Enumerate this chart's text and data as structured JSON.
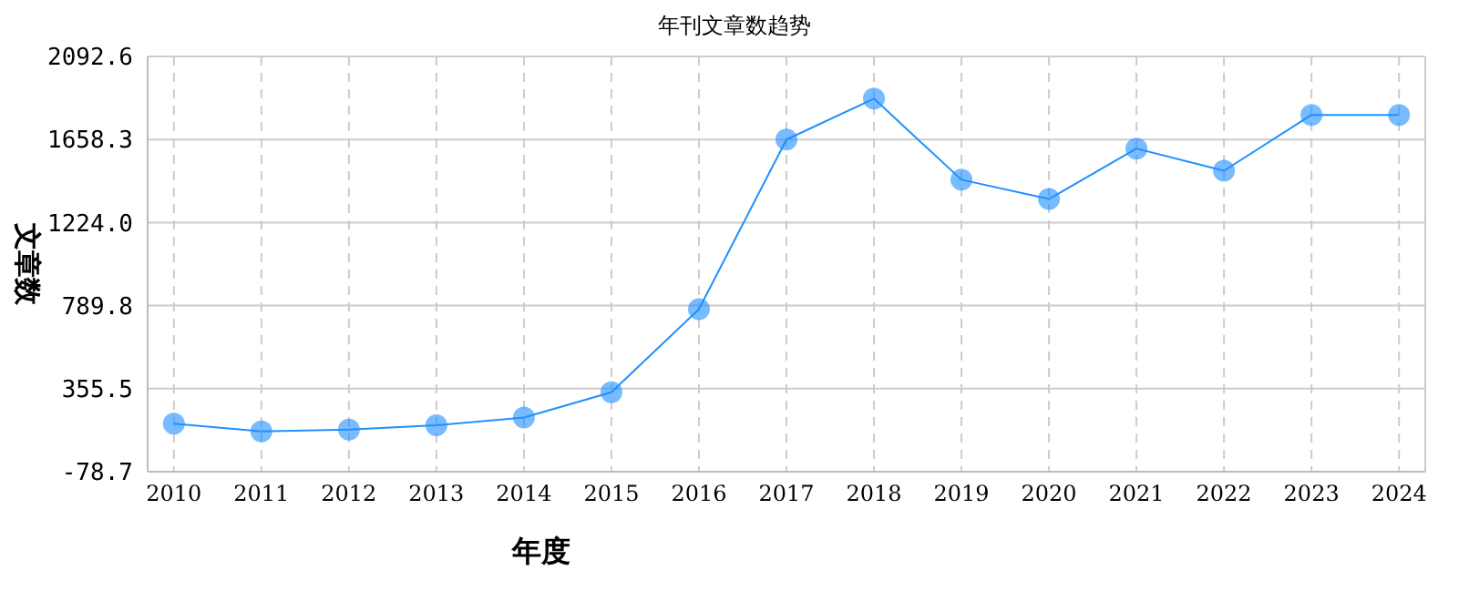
{
  "chart_data": {
    "type": "line",
    "title": "年刊文章数趋势",
    "xlabel": "年度",
    "ylabel": "文章数",
    "categories": [
      "2010",
      "2011",
      "2012",
      "2013",
      "2014",
      "2015",
      "2016",
      "2017",
      "2018",
      "2019",
      "2020",
      "2021",
      "2022",
      "2023",
      "2024"
    ],
    "series": [
      {
        "color": "#1e90ff",
        "values": [
          173,
          132,
          142,
          164,
          205,
          337,
          771,
          1658,
          1872,
          1448,
          1347,
          1611,
          1495,
          1787,
          1787
        ]
      }
    ],
    "ylim": [
      -78.7,
      2092.6
    ],
    "yticks": [
      {
        "value": -78.7,
        "label": "-78.7"
      },
      {
        "value": 355.5,
        "label": "355.5"
      },
      {
        "value": 789.8,
        "label": "789.8"
      },
      {
        "value": 1224.0,
        "label": "1224.0"
      },
      {
        "value": 1658.3,
        "label": "1658.3"
      },
      {
        "value": 2092.6,
        "label": "2092.6"
      }
    ],
    "grid": true,
    "marker": "circle",
    "line_style": "solid"
  }
}
